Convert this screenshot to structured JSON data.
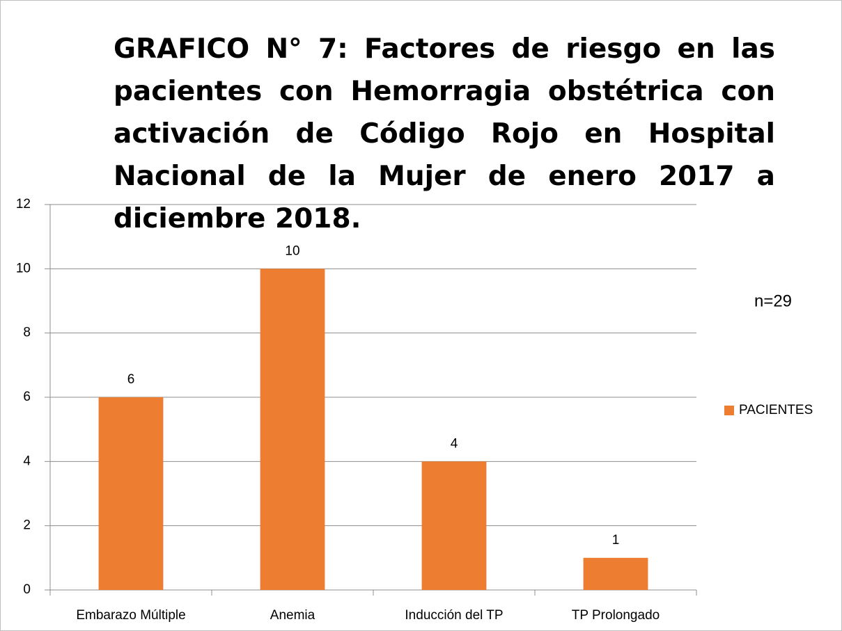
{
  "chart_data": {
    "type": "bar",
    "title": "GRAFICO N° 7: Factores de riesgo en las pacientes con Hemorragia obstétrica con activación de Código Rojo en Hospital Nacional de la Mujer de enero 2017 a diciembre 2018.",
    "categories": [
      "Embarazo Múltiple",
      "Anemia",
      "Inducción del TP",
      "TP Prolongado"
    ],
    "series": [
      {
        "name": "PACIENTES",
        "color": "#ed7d31",
        "values": [
          6,
          10,
          4,
          1
        ]
      }
    ],
    "ylim": [
      0,
      12
    ],
    "yticks": [
      0,
      2,
      4,
      6,
      8,
      10,
      12
    ],
    "grid": true,
    "legend": "right",
    "annotation": "n=29"
  }
}
